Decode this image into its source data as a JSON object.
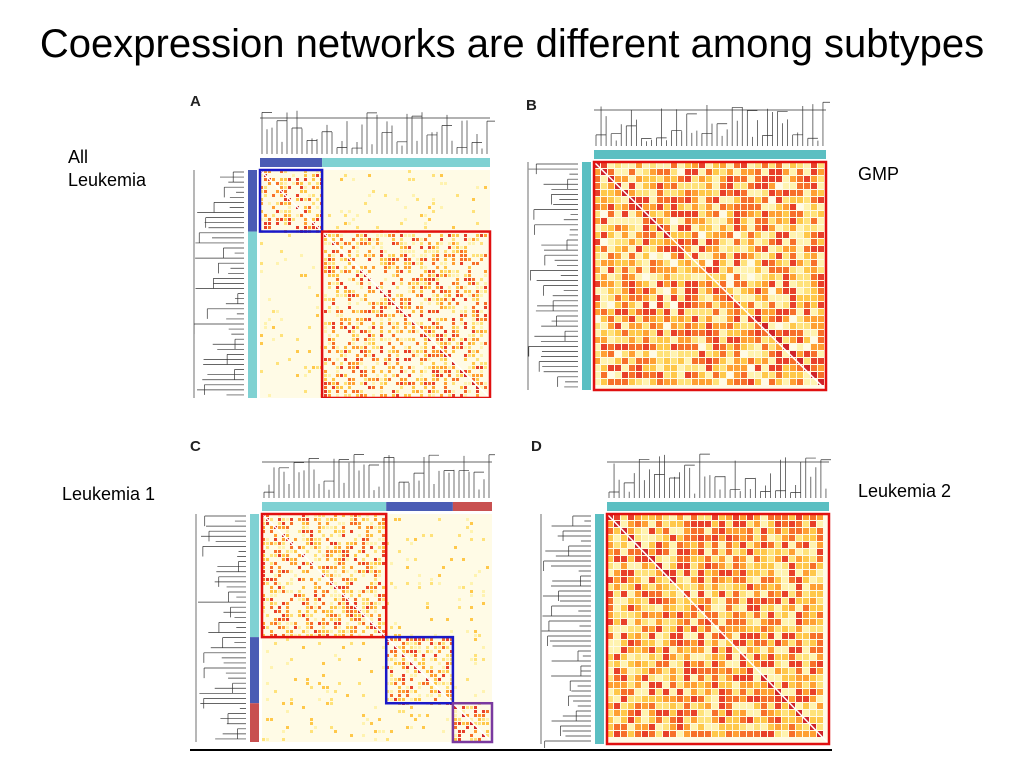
{
  "slide": {
    "title": "Coexpression networks are different among subtypes"
  },
  "labels": {
    "all_leukemia": "All\nLeukemia",
    "gmp": "GMP",
    "leukemia1": "Leukemia 1",
    "leukemia2": "Leukemia 2"
  },
  "panels": [
    {
      "id": "A",
      "label": "A",
      "module_bar": [
        {
          "color": "#4a5cb4",
          "fraction": 0.27
        },
        {
          "color": "#7fd1d3",
          "fraction": 0.73
        }
      ],
      "modules": [
        {
          "start": 0.0,
          "end": 0.27,
          "color": "#1a18c8"
        },
        {
          "start": 0.27,
          "end": 1.0,
          "color": "#e01010"
        }
      ]
    },
    {
      "id": "B",
      "label": "B",
      "module_bar": [
        {
          "color": "#5bbfc2",
          "fraction": 1.0
        }
      ],
      "modules": [
        {
          "start": 0.0,
          "end": 1.0,
          "color": "#e01010"
        }
      ]
    },
    {
      "id": "C",
      "label": "C",
      "module_bar": [
        {
          "color": "#7fd1d3",
          "fraction": 0.54
        },
        {
          "color": "#4a5cb4",
          "fraction": 0.29
        },
        {
          "color": "#c85050",
          "fraction": 0.17
        }
      ],
      "modules": [
        {
          "start": 0.0,
          "end": 0.54,
          "color": "#e01010"
        },
        {
          "start": 0.54,
          "end": 0.83,
          "color": "#1a18c8"
        },
        {
          "start": 0.83,
          "end": 1.0,
          "color": "#7a3aa0"
        }
      ]
    },
    {
      "id": "D",
      "label": "D",
      "module_bar": [
        {
          "color": "#5bbfc2",
          "fraction": 1.0
        }
      ],
      "modules": [
        {
          "start": 0.0,
          "end": 1.0,
          "color": "#e01010"
        }
      ]
    }
  ]
}
